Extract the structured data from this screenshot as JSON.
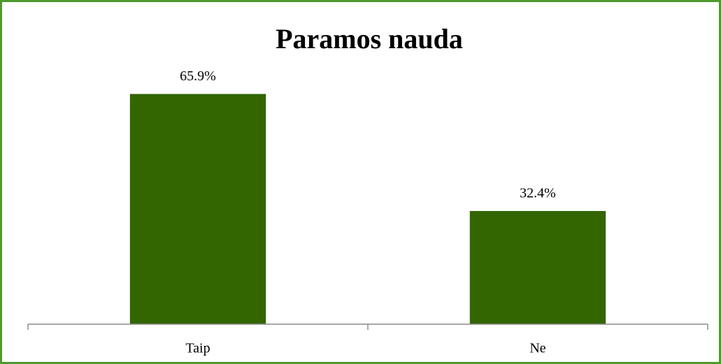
{
  "chart_data": {
    "type": "bar",
    "title": "Paramos nauda",
    "categories": [
      "Taip",
      "Ne"
    ],
    "values": [
      65.9,
      32.4
    ],
    "value_labels": [
      "65.9%",
      "32.4%"
    ],
    "color": "#336600"
  }
}
